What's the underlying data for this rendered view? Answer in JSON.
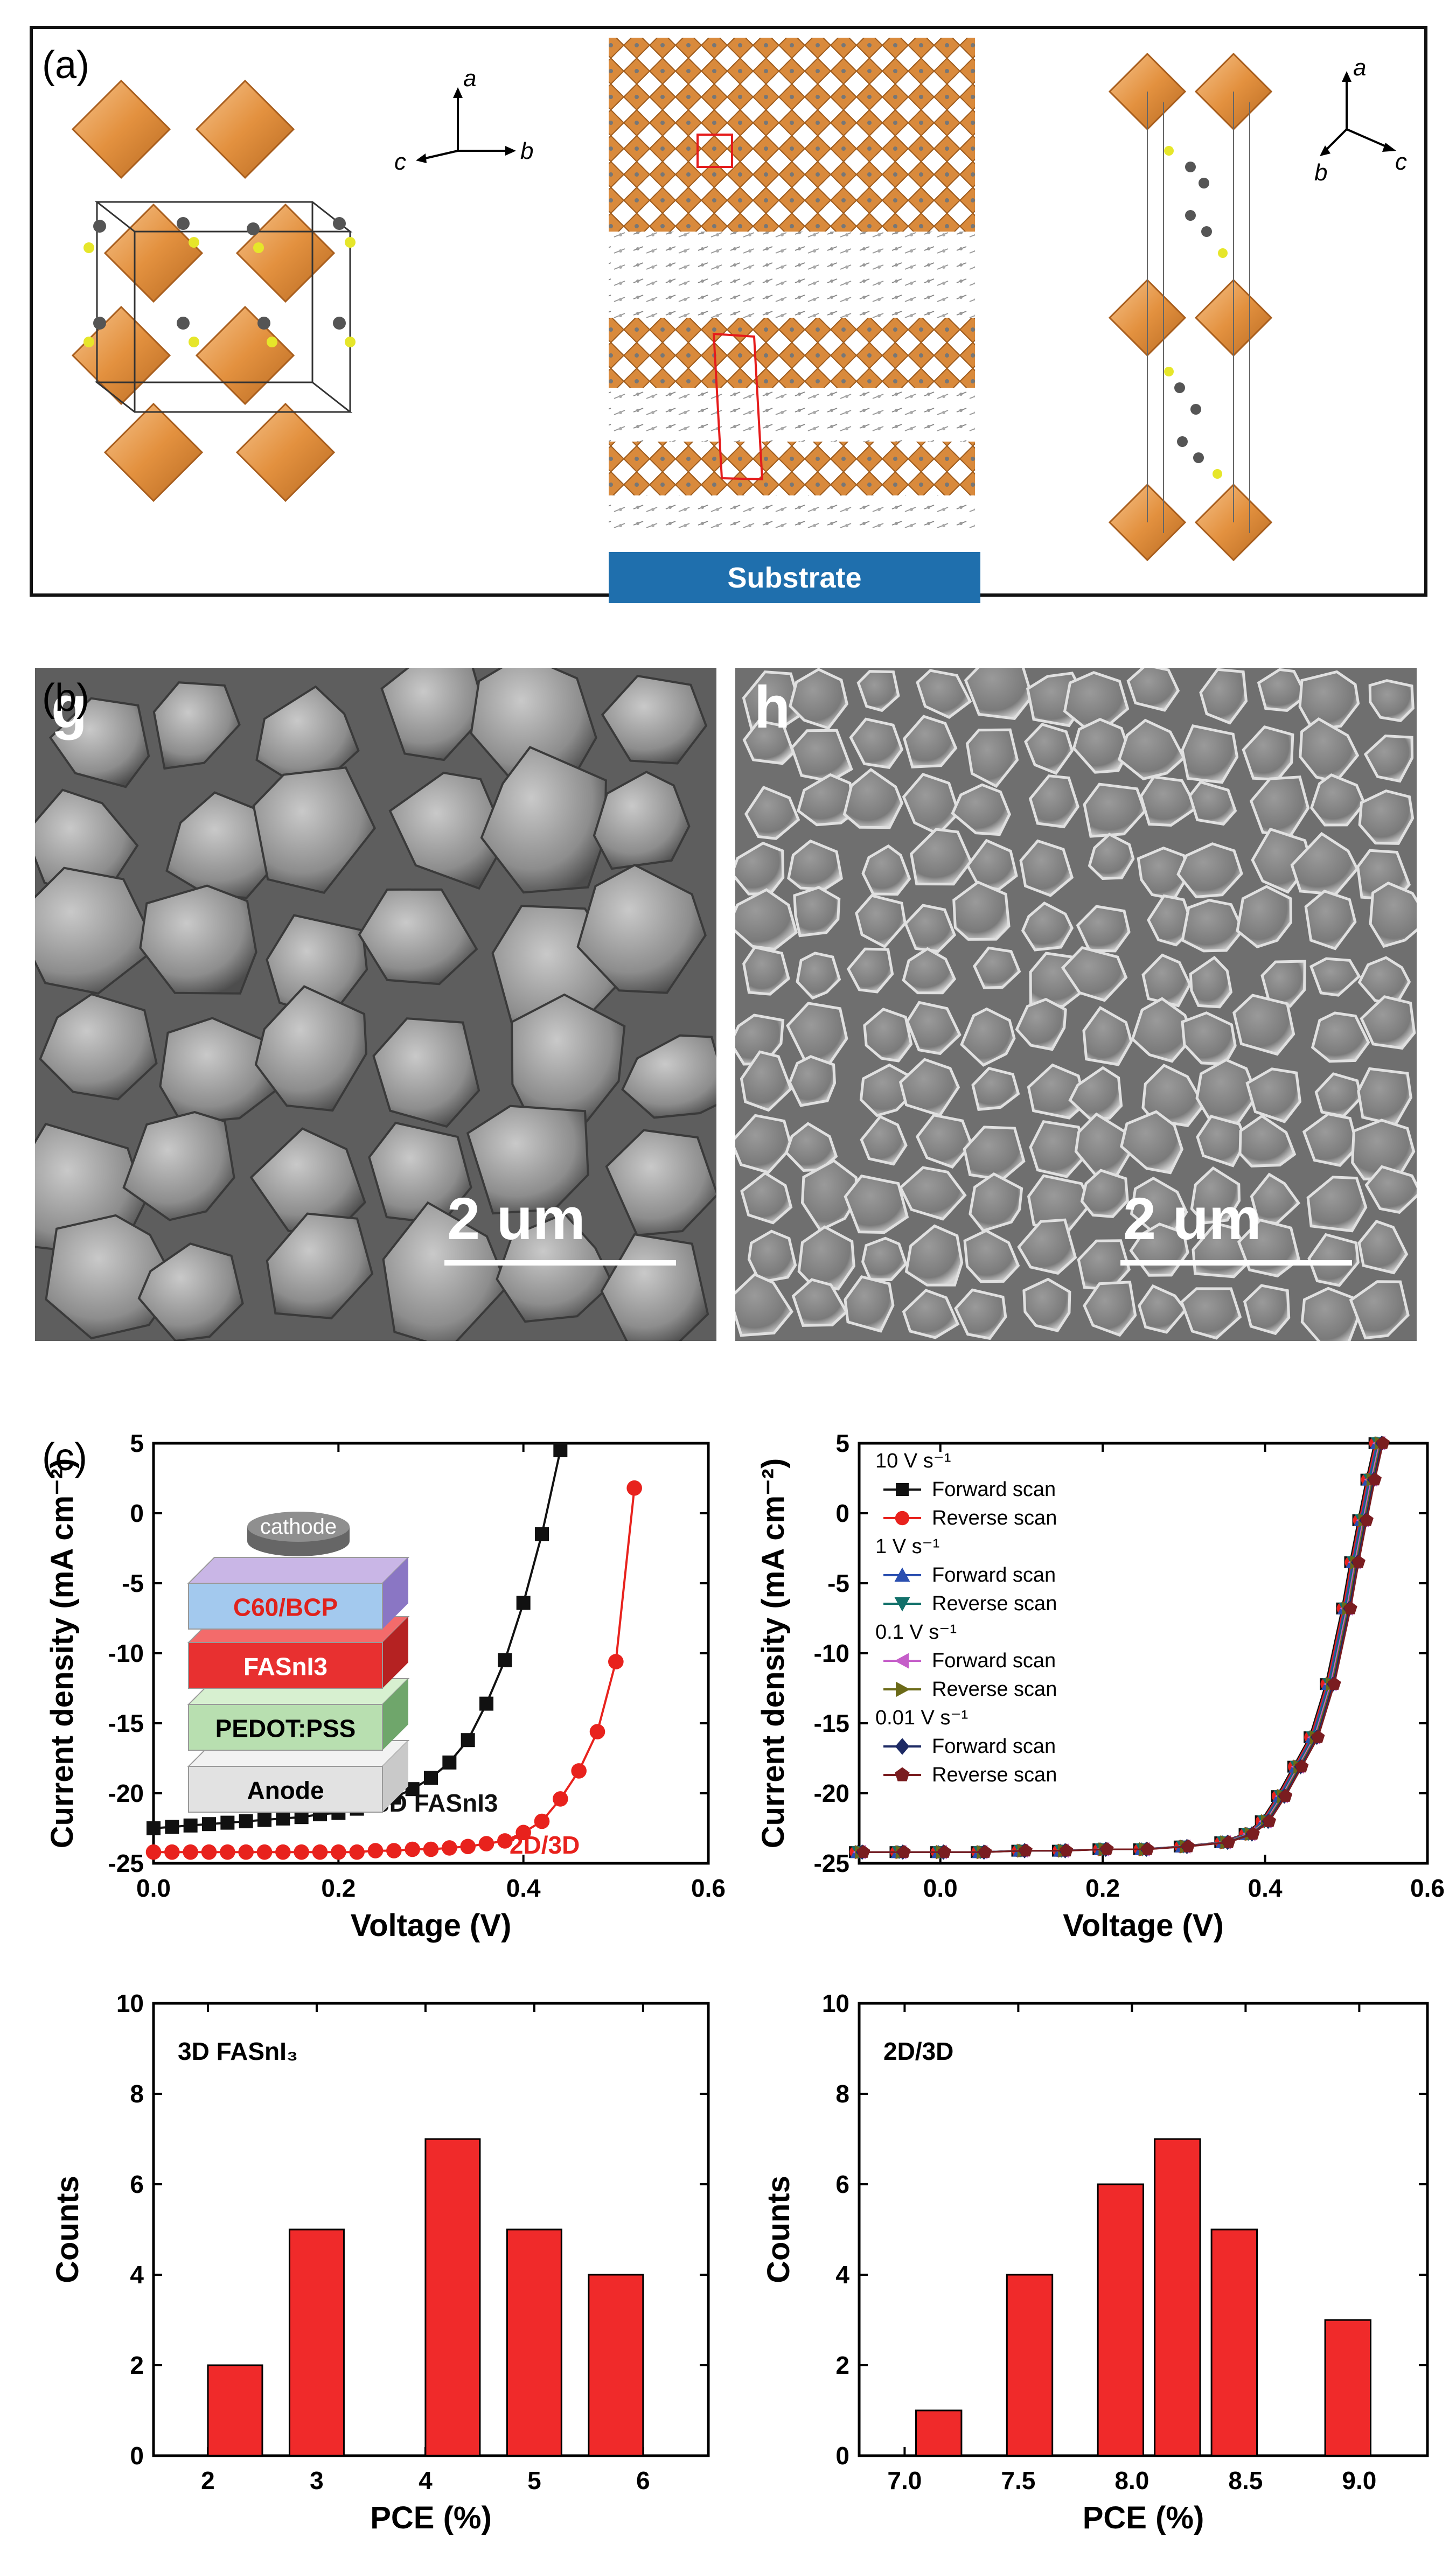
{
  "panel_a": {
    "label": "(a)",
    "substrate_label": "Substrate",
    "axes_left": {
      "a": "a",
      "b": "b",
      "c": "c"
    },
    "axes_right": {
      "a": "a",
      "b": "b",
      "c": "c"
    }
  },
  "panel_b": {
    "label": "(b)",
    "left": {
      "letter": "g",
      "scale": "2 um"
    },
    "right": {
      "letter": "h",
      "scale": "2 um"
    }
  },
  "panel_c": {
    "label": "(c)",
    "stack_layers": [
      "cathode",
      "C60/BCP",
      "FASnI3",
      "PEDOT:PSS",
      "Anode"
    ]
  },
  "colors": {
    "red": "#e8221d",
    "black": "#111111",
    "bar": "#f02a2a",
    "blue": "#2b4fb0",
    "teal": "#11706a",
    "magenta": "#c55ec9",
    "olive": "#6b6a18",
    "navy": "#1d2a64",
    "maroon": "#7a1d20"
  },
  "chart_data": [
    {
      "type": "line",
      "xlabel": "Voltage (V)",
      "ylabel": "Current density (mA cm⁻²)",
      "xlim": [
        0.0,
        0.6
      ],
      "ylim": [
        -25,
        5
      ],
      "xticks": [
        "0.0",
        "0.2",
        "0.4",
        "0.6"
      ],
      "yticks": [
        "5",
        "0",
        "-5",
        "-10",
        "-15",
        "-20",
        "-25"
      ],
      "series": [
        {
          "name": "3D FASnI3",
          "marker": "square",
          "color": "#111111",
          "x": [
            0.0,
            0.02,
            0.04,
            0.06,
            0.08,
            0.1,
            0.12,
            0.14,
            0.16,
            0.18,
            0.2,
            0.22,
            0.24,
            0.26,
            0.28,
            0.3,
            0.32,
            0.34,
            0.36,
            0.38,
            0.4,
            0.42,
            0.44
          ],
          "y": [
            -22.5,
            -22.4,
            -22.3,
            -22.2,
            -22.1,
            -22.0,
            -21.9,
            -21.8,
            -21.7,
            -21.5,
            -21.4,
            -21.1,
            -20.8,
            -20.3,
            -19.7,
            -18.9,
            -17.8,
            -16.2,
            -13.6,
            -10.5,
            -6.4,
            -1.5,
            4.5
          ]
        },
        {
          "name": "2D/3D",
          "marker": "circle",
          "color": "#e8221d",
          "x": [
            0.0,
            0.02,
            0.04,
            0.06,
            0.08,
            0.1,
            0.12,
            0.14,
            0.16,
            0.18,
            0.2,
            0.22,
            0.24,
            0.26,
            0.28,
            0.3,
            0.32,
            0.34,
            0.36,
            0.38,
            0.4,
            0.42,
            0.44,
            0.46,
            0.48,
            0.5,
            0.52
          ],
          "y": [
            -24.2,
            -24.2,
            -24.2,
            -24.2,
            -24.2,
            -24.2,
            -24.2,
            -24.2,
            -24.2,
            -24.2,
            -24.2,
            -24.2,
            -24.1,
            -24.1,
            -24.0,
            -24.0,
            -23.9,
            -23.8,
            -23.6,
            -23.4,
            -22.8,
            -22.0,
            -20.4,
            -18.4,
            -15.6,
            -10.6,
            1.8
          ]
        }
      ]
    },
    {
      "type": "line",
      "xlabel": "Voltage (V)",
      "ylabel": "Current density (mA cm⁻²)",
      "xlim": [
        -0.1,
        0.6
      ],
      "ylim": [
        -25,
        5
      ],
      "xticks": [
        "0.0",
        "0.2",
        "0.4",
        "0.6"
      ],
      "yticks": [
        "5",
        "0",
        "-5",
        "-10",
        "-15",
        "-20",
        "-25"
      ],
      "legend": [
        {
          "header": "10 V s⁻¹"
        },
        {
          "name": "Forward scan",
          "marker": "square",
          "color": "#111111"
        },
        {
          "name": "Reverse scan",
          "marker": "circle",
          "color": "#e8221d"
        },
        {
          "header": "1 V s⁻¹"
        },
        {
          "name": "Forward scan",
          "marker": "triangle-up",
          "color": "#2b4fb0"
        },
        {
          "name": "Reverse scan",
          "marker": "triangle-down",
          "color": "#11706a"
        },
        {
          "header": "0.1 V s⁻¹"
        },
        {
          "name": "Forward scan",
          "marker": "triangle-left",
          "color": "#c55ec9"
        },
        {
          "name": "Reverse scan",
          "marker": "triangle-right",
          "color": "#6b6a18"
        },
        {
          "header": "0.01 V s⁻¹"
        },
        {
          "name": "Forward scan",
          "marker": "diamond",
          "color": "#1d2a64"
        },
        {
          "name": "Reverse scan",
          "marker": "pentagon",
          "color": "#7a1d20"
        }
      ],
      "curve": {
        "x": [
          -0.1,
          -0.05,
          0.0,
          0.05,
          0.1,
          0.15,
          0.2,
          0.25,
          0.3,
          0.35,
          0.38,
          0.4,
          0.42,
          0.44,
          0.46,
          0.48,
          0.5,
          0.51,
          0.52,
          0.53,
          0.54
        ],
        "y": [
          -24.2,
          -24.2,
          -24.2,
          -24.2,
          -24.1,
          -24.1,
          -24.0,
          -24.0,
          -23.8,
          -23.5,
          -22.9,
          -22.0,
          -20.2,
          -18.1,
          -16.0,
          -12.2,
          -6.8,
          -3.5,
          -0.5,
          2.4,
          5.0
        ]
      }
    },
    {
      "type": "bar",
      "title": "3D FASnI₃",
      "xlabel": "PCE (%)",
      "ylabel": "Counts",
      "xlim": [
        1.5,
        6.6
      ],
      "ylim": [
        0,
        10
      ],
      "xticks": [
        "2",
        "3",
        "4",
        "5",
        "6"
      ],
      "yticks": [
        "0",
        "2",
        "4",
        "6",
        "8",
        "10"
      ],
      "bins_center": [
        2.25,
        3.0,
        4.25,
        5.0,
        5.75
      ],
      "bin_width": 0.5,
      "values": [
        2,
        5,
        7,
        5,
        4
      ]
    },
    {
      "type": "bar",
      "title": "2D/3D",
      "xlabel": "PCE (%)",
      "ylabel": "Counts",
      "xlim": [
        6.8,
        9.3
      ],
      "ylim": [
        0,
        10
      ],
      "xticks": [
        "7.0",
        "7.5",
        "8.0",
        "8.5",
        "9.0"
      ],
      "yticks": [
        "0",
        "2",
        "4",
        "6",
        "8",
        "10"
      ],
      "bins_center": [
        7.15,
        7.55,
        7.95,
        8.2,
        8.45,
        8.95
      ],
      "bin_width": 0.2,
      "values": [
        1,
        4,
        6,
        7,
        5,
        3
      ]
    }
  ]
}
